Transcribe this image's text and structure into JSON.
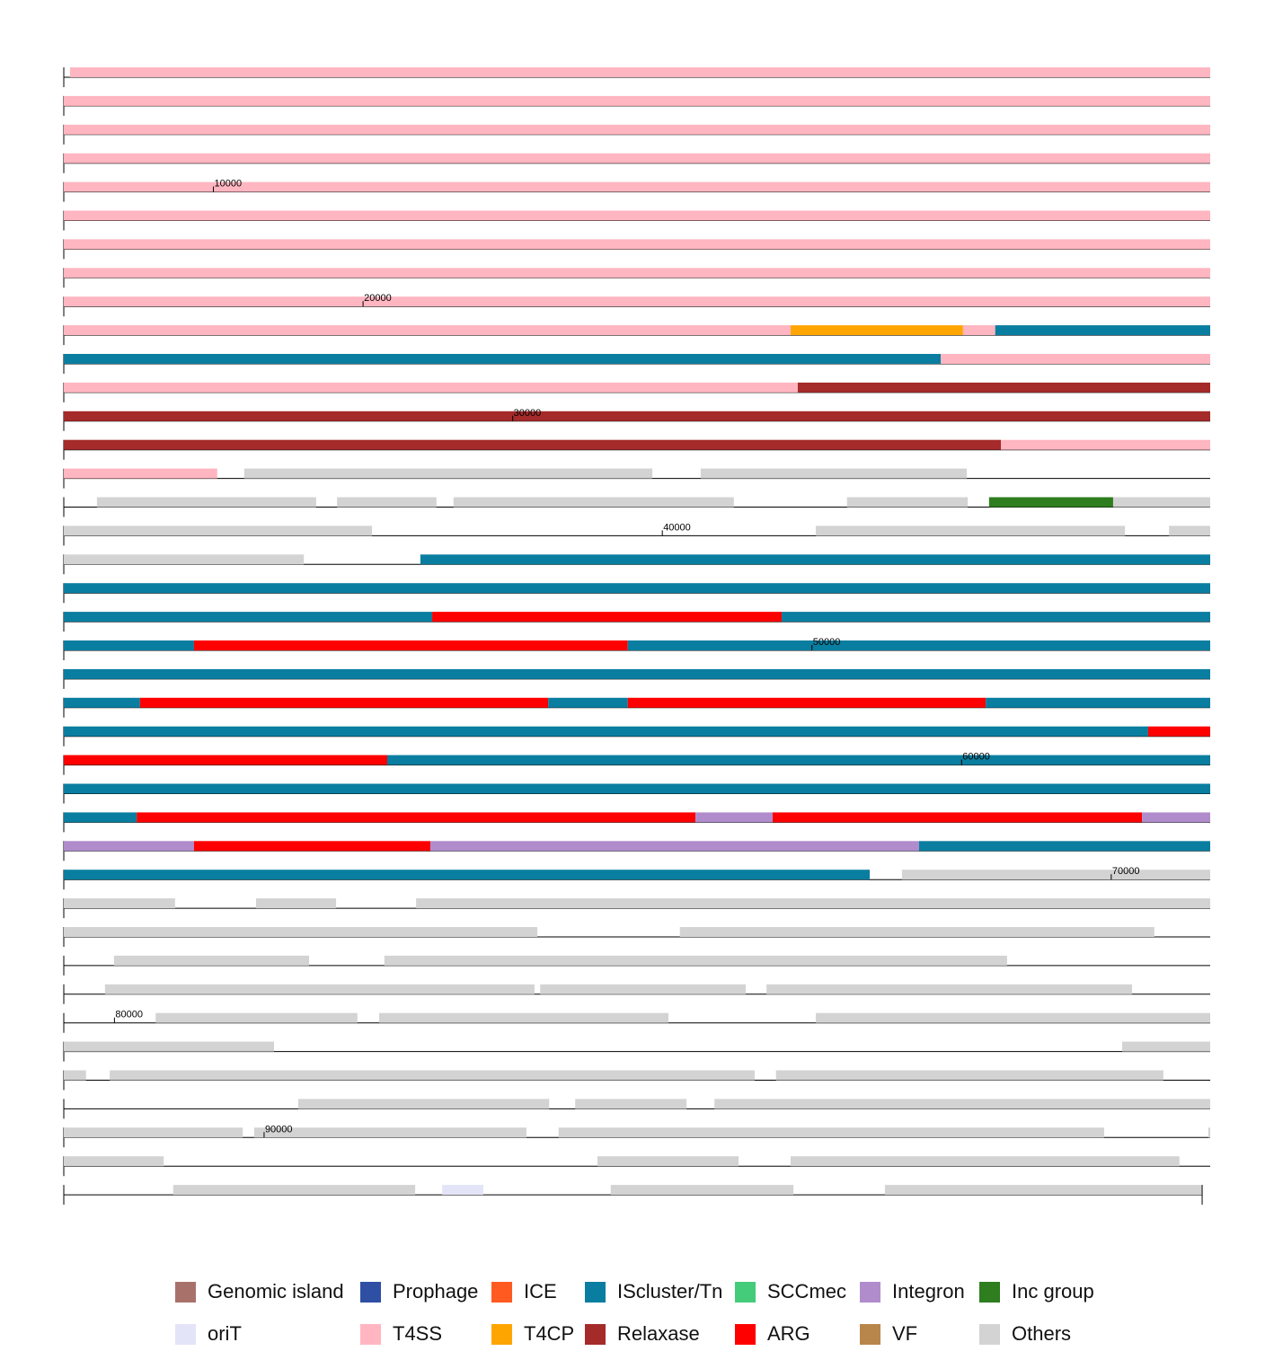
{
  "chart_data": {
    "type": "genome_map",
    "length": 96823,
    "row_length": 2421,
    "ticks": [
      10000,
      20000,
      30000,
      40000,
      50000,
      60000,
      70000,
      80000,
      90000
    ],
    "legend": [
      {
        "name": "Genomic island",
        "color": "#a8726a"
      },
      {
        "name": "Prophage",
        "color": "#2e4fa3"
      },
      {
        "name": "ICE",
        "color": "#ff5a1f"
      },
      {
        "name": "IScluster/Tn",
        "color": "#0a7ea0"
      },
      {
        "name": "SCCmec",
        "color": "#45cc7a"
      },
      {
        "name": "Integron",
        "color": "#b08ccc"
      },
      {
        "name": "Inc group",
        "color": "#2e7d1f"
      },
      {
        "name": "oriT",
        "color": "#e4e4f8"
      },
      {
        "name": "T4SS",
        "color": "#ffb6c1"
      },
      {
        "name": "T4CP",
        "color": "#ffa500"
      },
      {
        "name": "Relaxase",
        "color": "#a52a2a"
      },
      {
        "name": "ARG",
        "color": "#ff0000"
      },
      {
        "name": "VF",
        "color": "#b8864b"
      },
      {
        "name": "Others",
        "color": "#d3d3d3"
      }
    ],
    "features": [
      {
        "type": "T4SS",
        "start": 13,
        "end": 23324
      },
      {
        "type": "T4CP",
        "start": 23324,
        "end": 23688
      },
      {
        "type": "T4SS",
        "start": 23688,
        "end": 23756
      },
      {
        "type": "IScluster/Tn",
        "start": 23756,
        "end": 26062
      },
      {
        "type": "T4SS",
        "start": 26062,
        "end": 28181
      },
      {
        "type": "Relaxase",
        "start": 28181,
        "end": 33452
      },
      {
        "type": "T4SS",
        "start": 33452,
        "end": 34218
      },
      {
        "type": "Others",
        "start": 34275,
        "end": 35137
      },
      {
        "type": "Others",
        "start": 35239,
        "end": 35801
      },
      {
        "type": "Others",
        "start": 36385,
        "end": 36848
      },
      {
        "type": "Others",
        "start": 36892,
        "end": 37102
      },
      {
        "type": "Others",
        "start": 37138,
        "end": 37730
      },
      {
        "type": "Others",
        "start": 37969,
        "end": 38224
      },
      {
        "type": "Inc group",
        "start": 38269,
        "end": 38531
      },
      {
        "type": "Others",
        "start": 38531,
        "end": 39387
      },
      {
        "type": "Others",
        "start": 40324,
        "end": 40977
      },
      {
        "type": "Others",
        "start": 41070,
        "end": 41664
      },
      {
        "type": "IScluster/Tn",
        "start": 41910,
        "end": 46777
      },
      {
        "type": "ARG",
        "start": 46777,
        "end": 47515
      },
      {
        "type": "IScluster/Tn",
        "start": 47515,
        "end": 48695
      },
      {
        "type": "ARG",
        "start": 48695,
        "end": 49611
      },
      {
        "type": "IScluster/Tn",
        "start": 49611,
        "end": 53423
      },
      {
        "type": "ARG",
        "start": 53423,
        "end": 54285
      },
      {
        "type": "IScluster/Tn",
        "start": 54285,
        "end": 54453
      },
      {
        "type": "ARG",
        "start": 54453,
        "end": 55209
      },
      {
        "type": "IScluster/Tn",
        "start": 55209,
        "end": 57973
      },
      {
        "type": "ARG",
        "start": 57973,
        "end": 58787
      },
      {
        "type": "IScluster/Tn",
        "start": 58787,
        "end": 63100
      },
      {
        "type": "ARG",
        "start": 63100,
        "end": 64280
      },
      {
        "type": "Integron",
        "start": 64280,
        "end": 64443
      },
      {
        "type": "ARG",
        "start": 64443,
        "end": 65223
      },
      {
        "type": "Integron",
        "start": 65223,
        "end": 65642
      },
      {
        "type": "ARG",
        "start": 65642,
        "end": 66141
      },
      {
        "type": "Integron",
        "start": 66141,
        "end": 67173
      },
      {
        "type": "IScluster/Tn",
        "start": 67173,
        "end": 69490
      },
      {
        "type": "Others",
        "start": 69558,
        "end": 70444
      },
      {
        "type": "Others",
        "start": 70615,
        "end": 70784
      },
      {
        "type": "Others",
        "start": 70953,
        "end": 73630
      },
      {
        "type": "Others",
        "start": 73931,
        "end": 74933
      },
      {
        "type": "Others",
        "start": 75157,
        "end": 75569
      },
      {
        "type": "Others",
        "start": 75728,
        "end": 77043
      },
      {
        "type": "Others",
        "start": 77559,
        "end": 78466
      },
      {
        "type": "Others",
        "start": 78478,
        "end": 78912
      },
      {
        "type": "Others",
        "start": 78956,
        "end": 79728
      },
      {
        "type": "Others",
        "start": 80087,
        "end": 80513
      },
      {
        "type": "Others",
        "start": 80559,
        "end": 81170
      },
      {
        "type": "Others",
        "start": 81481,
        "end": 82758
      },
      {
        "type": "Others",
        "start": 84549,
        "end": 84782
      },
      {
        "type": "Others",
        "start": 84832,
        "end": 86194
      },
      {
        "type": "Others",
        "start": 86239,
        "end": 87057
      },
      {
        "type": "Others",
        "start": 87651,
        "end": 88181
      },
      {
        "type": "Others",
        "start": 88236,
        "end": 88471
      },
      {
        "type": "Others",
        "start": 88530,
        "end": 89955
      },
      {
        "type": "Others",
        "start": 89979,
        "end": 90554
      },
      {
        "type": "Others",
        "start": 90622,
        "end": 91774
      },
      {
        "type": "Others",
        "start": 91994,
        "end": 92209
      },
      {
        "type": "Others",
        "start": 93125,
        "end": 93423
      },
      {
        "type": "Others",
        "start": 93533,
        "end": 94354
      },
      {
        "type": "Others",
        "start": 94650,
        "end": 95161
      },
      {
        "type": "oriT",
        "start": 95218,
        "end": 95305
      },
      {
        "type": "Others",
        "start": 95574,
        "end": 95960
      },
      {
        "type": "Others",
        "start": 96153,
        "end": 96823
      }
    ]
  }
}
